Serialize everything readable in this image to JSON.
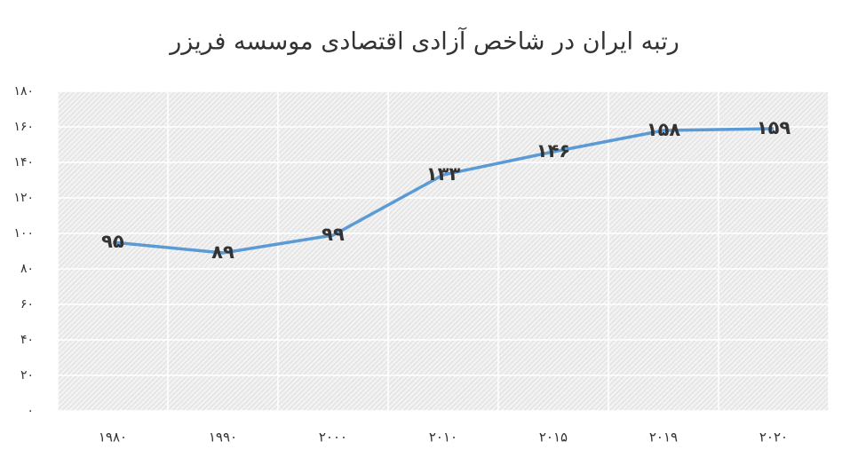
{
  "chart_data": {
    "type": "line",
    "title": "رتبه ایران در شاخص آزادی اقتصادی موسسه فریزر",
    "categories": [
      "۱۹۸۰",
      "۱۹۹۰",
      "۲۰۰۰",
      "۲۰۱۰",
      "۲۰۱۵",
      "۲۰۱۹",
      "۲۰۲۰"
    ],
    "series": [
      {
        "color": "#5b9bd5",
        "values": [
          95,
          89,
          99,
          133,
          146,
          158,
          159
        ],
        "value_labels": [
          "۹۵",
          "۸۹",
          "۹۹",
          "۱۳۳",
          "۱۴۶",
          "۱۵۸",
          "۱۵۹"
        ]
      }
    ],
    "ylim": [
      0,
      180
    ],
    "yticks": [
      {
        "value": 0,
        "label": "۰"
      },
      {
        "value": 20,
        "label": "۲۰"
      },
      {
        "value": 40,
        "label": "۴۰"
      },
      {
        "value": 60,
        "label": "۶۰"
      },
      {
        "value": 80,
        "label": "۸۰"
      },
      {
        "value": 100,
        "label": "۱۰۰"
      },
      {
        "value": 120,
        "label": "۱۲۰"
      },
      {
        "value": 140,
        "label": "۱۴۰"
      },
      {
        "value": 160,
        "label": "۱۶۰"
      },
      {
        "value": 180,
        "label": "۱۸۰"
      }
    ],
    "grid": true
  }
}
